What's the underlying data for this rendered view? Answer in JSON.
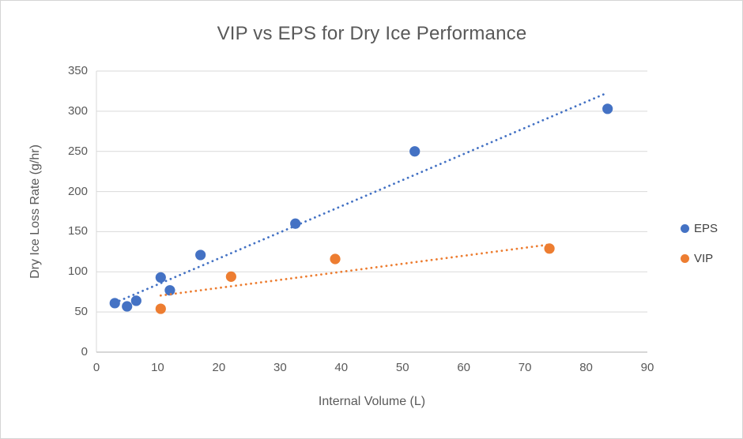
{
  "chart_data": {
    "type": "scatter",
    "title": "VIP vs EPS for Dry Ice Performance",
    "xlabel": "Internal Volume (L)",
    "ylabel": "Dry Ice Loss Rate (g/hr)",
    "xlim": [
      0,
      90
    ],
    "ylim": [
      0,
      350
    ],
    "xticks": [
      0,
      10,
      20,
      30,
      40,
      50,
      60,
      70,
      80,
      90
    ],
    "yticks": [
      0,
      50,
      100,
      150,
      200,
      250,
      300,
      350
    ],
    "grid": "horizontal",
    "legend_position": "right",
    "colors": {
      "eps": "#4472C4",
      "vip": "#ED7D31",
      "gridline": "#D9D9D9",
      "x_axis_line": "#BFBFBF",
      "y_axis_line": "#D9D9D9",
      "text": "#595959"
    },
    "series": [
      {
        "name": "EPS",
        "color": "#4472C4",
        "marker": "circle",
        "points": [
          [
            3,
            61
          ],
          [
            5,
            57
          ],
          [
            6.5,
            64
          ],
          [
            10.5,
            93
          ],
          [
            12,
            77
          ],
          [
            17,
            121
          ],
          [
            32.5,
            160
          ],
          [
            52,
            250
          ],
          [
            83.5,
            303
          ]
        ],
        "trendline": {
          "style": "dotted",
          "slope": 3.25,
          "intercept": 51.7,
          "x_start": 3,
          "x_end": 83.5
        }
      },
      {
        "name": "VIP",
        "color": "#ED7D31",
        "marker": "circle",
        "points": [
          [
            10.5,
            54
          ],
          [
            22,
            94
          ],
          [
            39,
            116
          ],
          [
            74,
            129
          ]
        ],
        "trendline": {
          "style": "dotted",
          "slope": 1.0,
          "intercept": 60.0,
          "x_start": 10.5,
          "x_end": 74
        }
      }
    ]
  }
}
